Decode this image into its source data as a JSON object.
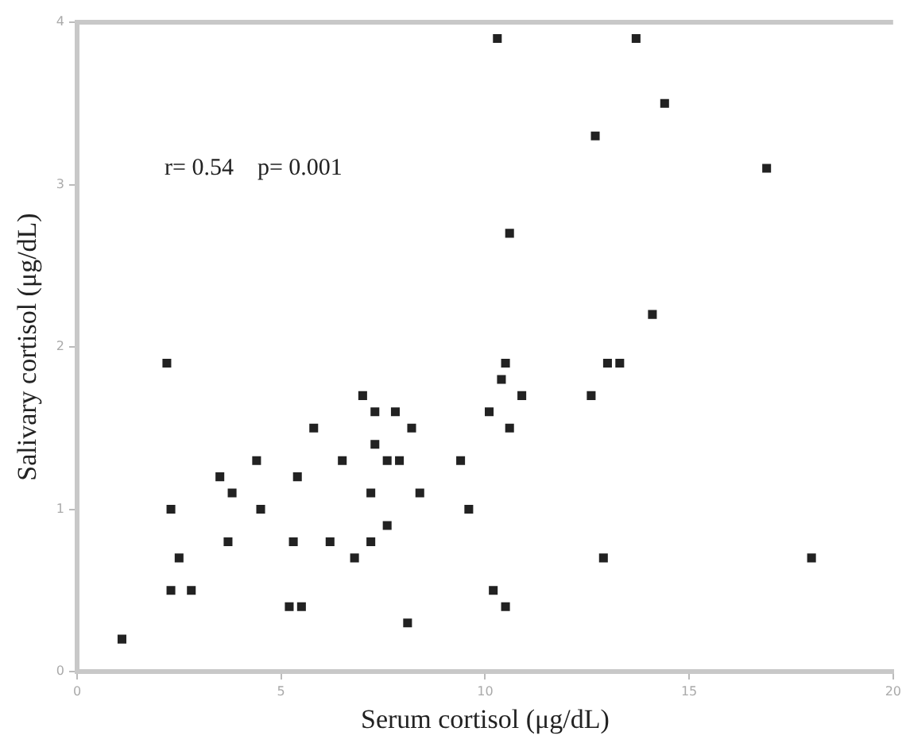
{
  "chart_data": {
    "type": "scatter",
    "xlabel": "Serum cortisol (μg/dL)",
    "ylabel": "Salivary cortisol (μg/dL)",
    "annotations": [
      "r= 0.54    p= 0.001"
    ],
    "xlim": [
      0,
      20
    ],
    "xticks": [
      0,
      5,
      10,
      15,
      20
    ],
    "ylim": [
      0,
      4
    ],
    "yticks": [
      0,
      1,
      2,
      3,
      4
    ],
    "grid": false,
    "legend": false,
    "marker": "square",
    "series": [
      {
        "color": "#222222",
        "x": [
          1.1,
          2.2,
          2.3,
          2.3,
          2.5,
          2.8,
          3.5,
          3.8,
          3.7,
          4.4,
          4.5,
          5.4,
          5.3,
          5.2,
          5.5,
          5.8,
          6.2,
          6.5,
          6.8,
          7.0,
          7.2,
          7.2,
          7.3,
          7.3,
          7.6,
          7.6,
          7.8,
          7.9,
          8.1,
          8.2,
          8.4,
          9.4,
          9.6,
          10.1,
          10.2,
          10.4,
          10.5,
          10.5,
          10.6,
          10.9,
          12.6,
          13.0,
          13.3,
          12.9,
          18.0,
          14.1,
          10.3,
          13.7,
          14.4,
          12.7,
          16.9,
          10.6
        ],
        "values": [
          0.2,
          1.9,
          1.0,
          0.5,
          0.7,
          0.5,
          1.2,
          1.1,
          0.8,
          1.3,
          1.0,
          1.2,
          0.8,
          0.4,
          0.4,
          1.5,
          0.8,
          1.3,
          0.7,
          1.7,
          1.1,
          0.8,
          1.4,
          1.6,
          0.9,
          1.3,
          1.6,
          1.3,
          0.3,
          1.5,
          1.1,
          1.3,
          1.0,
          1.6,
          0.5,
          1.8,
          1.9,
          0.4,
          1.5,
          1.7,
          1.7,
          1.9,
          1.9,
          0.7,
          0.7,
          2.2,
          3.9,
          3.9,
          3.5,
          3.3,
          3.1,
          2.7
        ]
      }
    ]
  }
}
